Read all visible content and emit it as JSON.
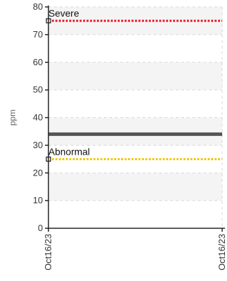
{
  "chart_data": {
    "type": "line",
    "ylabel": "ppm",
    "ylim": [
      0,
      80
    ],
    "yticks": [
      0,
      10,
      20,
      30,
      40,
      50,
      60,
      70,
      80
    ],
    "xticks": [
      "Oct16/23",
      "Oct16/23"
    ],
    "grid": true,
    "series": [
      {
        "values": [
          34,
          34
        ],
        "color": "#555555"
      }
    ],
    "thresholds": [
      {
        "label": "Severe",
        "value": 75,
        "color": "#e8202a"
      },
      {
        "label": "Abnormal",
        "value": 25,
        "color": "#f2c811"
      }
    ]
  }
}
